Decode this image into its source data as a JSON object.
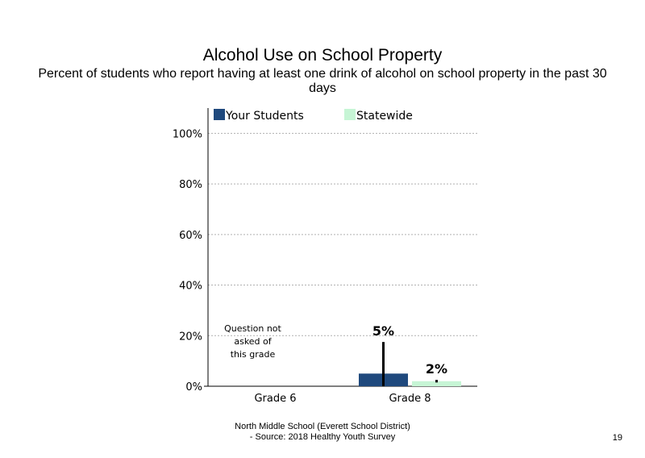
{
  "slide": {
    "title": "Alcohol Use on School Property",
    "subtitle": "Percent of students who report having at least one drink of alcohol on school property in the past 30 days",
    "footer_line1": "North Middle School (Everett School District)",
    "footer_line2": "- Source: 2018 Healthy Youth Survey",
    "page_number": "19"
  },
  "chart_data": {
    "type": "bar",
    "categories": [
      "Grade 6",
      "Grade 8"
    ],
    "series": [
      {
        "name": "Your Students",
        "color": "#1f497d",
        "values": [
          null,
          5
        ],
        "error": [
          null,
          12.5
        ],
        "labels": [
          "",
          "5%"
        ]
      },
      {
        "name": "Statewide",
        "color": "#c6f5d5",
        "values": [
          null,
          2
        ],
        "error": [
          null,
          0.5
        ],
        "labels": [
          "",
          "2%"
        ]
      }
    ],
    "ylim": [
      0,
      110
    ],
    "yticks": [
      0,
      20,
      40,
      60,
      80,
      100
    ],
    "ytick_labels": [
      "0%",
      "20%",
      "40%",
      "60%",
      "80%",
      "100%"
    ],
    "grid": true,
    "legend_position": "top",
    "notes": [
      {
        "category": "Grade 6",
        "lines": [
          "Question not",
          "asked of",
          "this grade"
        ]
      }
    ]
  }
}
